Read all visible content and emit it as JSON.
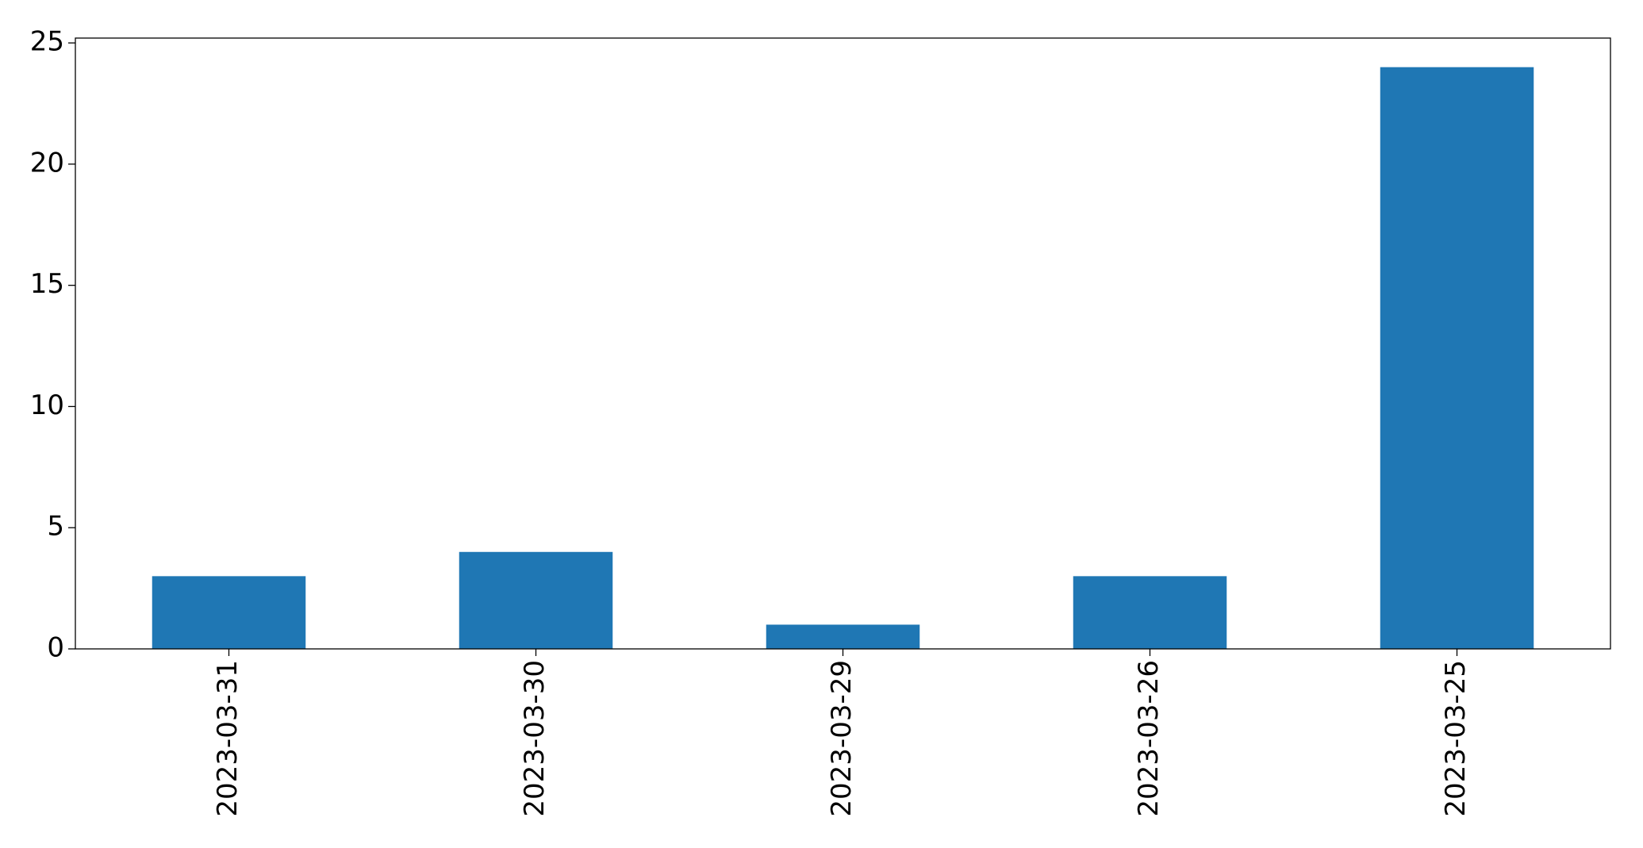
{
  "chart_data": {
    "type": "bar",
    "categories": [
      "2023-03-31",
      "2023-03-30",
      "2023-03-29",
      "2023-03-26",
      "2023-03-25"
    ],
    "values": [
      3,
      4,
      1,
      3,
      24
    ],
    "color": "#1f77b4",
    "ylim": [
      0,
      25.2
    ],
    "yticks": [
      0,
      5,
      10,
      15,
      20,
      25
    ],
    "grid": false
  }
}
